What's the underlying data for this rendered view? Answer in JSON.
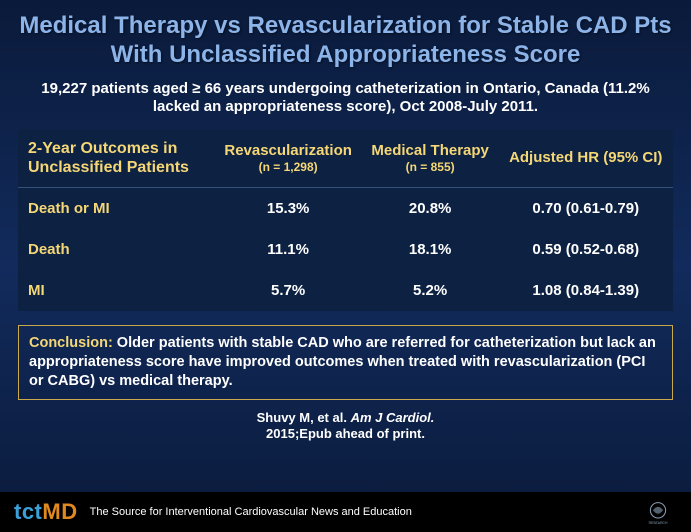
{
  "title": "Medical Therapy vs Revascularization for Stable CAD Pts With Unclassified Appropriateness Score",
  "subtitle": "19,227 patients aged ≥ 66 years undergoing catheterization in Ontario, Canada (11.2% lacked an appropriateness score), Oct 2008-July 2011.",
  "table": {
    "header_left": "2-Year Outcomes in Unclassified Patients",
    "col1_label": "Revascularization",
    "col1_n": "(n = 1,298)",
    "col2_label": "Medical Therapy",
    "col2_n": "(n = 855)",
    "col3_label": "Adjusted HR (95% CI)",
    "rows": [
      {
        "label": "Death or MI",
        "c1": "15.3%",
        "c2": "20.8%",
        "c3": "0.70 (0.61-0.79)"
      },
      {
        "label": "Death",
        "c1": "11.1%",
        "c2": "18.1%",
        "c3": "0.59 (0.52-0.68)"
      },
      {
        "label": "MI",
        "c1": "5.7%",
        "c2": "5.2%",
        "c3": "1.08 (0.84-1.39)"
      }
    ]
  },
  "conclusion": {
    "lead": "Conclusion:",
    "body": "  Older patients with stable CAD who are referred for catheterization but lack an appropriateness score have improved outcomes when treated with revascularization (PCI  or CABG) vs medical therapy."
  },
  "citation": {
    "line1_pre": "Shuvy M, et al. ",
    "line1_ital": "Am J Cardiol.",
    "line2": "2015;Epub ahead of print."
  },
  "footer": {
    "brand_a": "tct",
    "brand_b": "MD",
    "tagline": "The Source for Interventional Cardiovascular News and Education"
  },
  "colors": {
    "title": "#8db4e8",
    "accent": "#f5d776",
    "table_bg": "#0d2142",
    "border": "#c9a94a"
  }
}
